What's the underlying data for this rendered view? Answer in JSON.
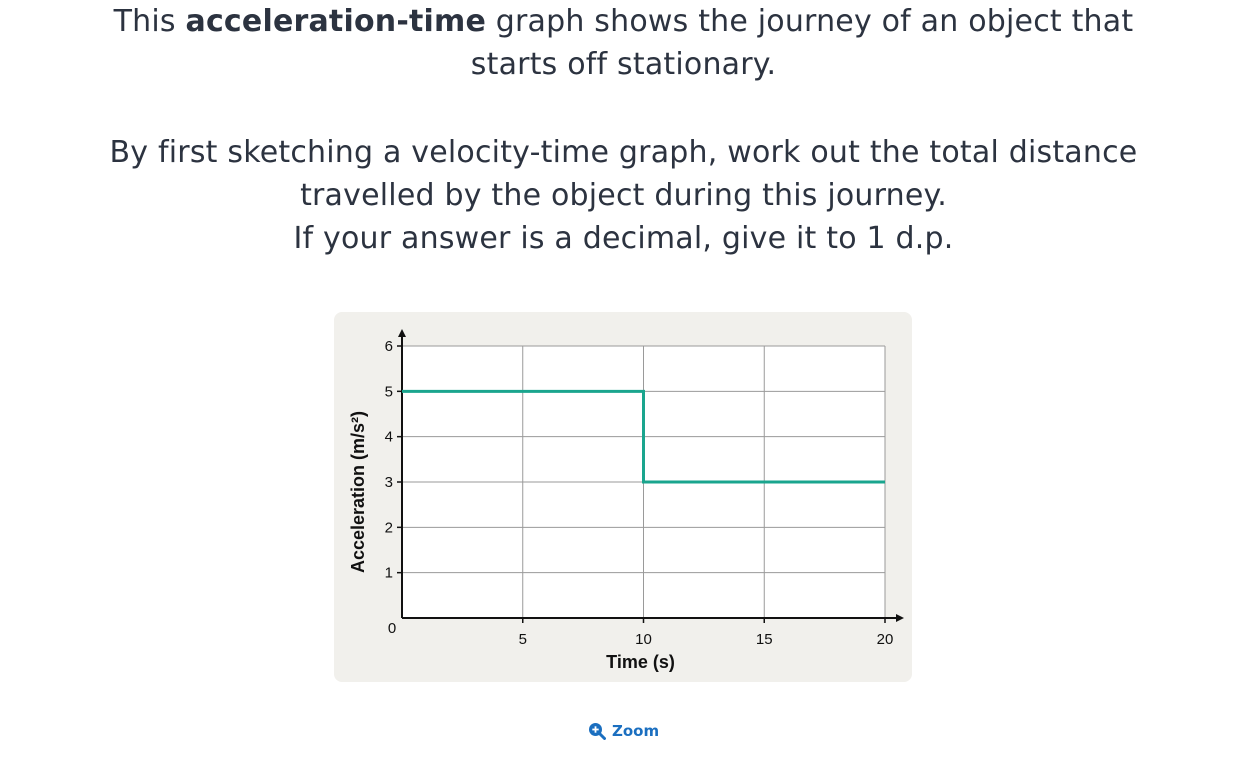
{
  "question": {
    "line1_pre": "This ",
    "line1_bold": "acceleration-time",
    "line1_post": " graph shows the journey of an object that",
    "line2": "starts off stationary.",
    "line3": "By first sketching a velocity-time graph, work out the total distance",
    "line4": "travelled by the object during this journey.",
    "line5": "If your answer is a decimal, give it to 1 d.p."
  },
  "chart_data": {
    "type": "line",
    "x": [
      0,
      10,
      10,
      20
    ],
    "series": [
      {
        "values": [
          5,
          5,
          3,
          3
        ],
        "color": "#1aa58e"
      }
    ],
    "xlabel": "Time (s)",
    "ylabel": "Acceleration (m/s²)",
    "xlim": [
      0,
      20
    ],
    "ylim": [
      0,
      6
    ],
    "x_ticks": [
      0,
      5,
      10,
      15,
      20
    ],
    "y_ticks": [
      1,
      2,
      3,
      4,
      5,
      6
    ],
    "grid": true,
    "background": "#f1f0ec"
  },
  "zoom": {
    "label": "Zoom",
    "icon": "zoom-in-icon",
    "color": "#1b6fc0"
  }
}
